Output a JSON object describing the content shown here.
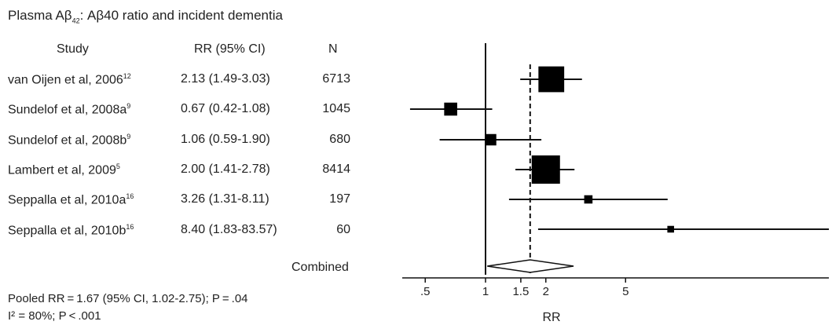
{
  "title": {
    "prefix": "Plasma Aβ",
    "subscript": "42",
    "suffix": ": Aβ40 ratio and incident dementia"
  },
  "headers": {
    "study": "Study",
    "rr": "RR (95% CI)",
    "n": "N"
  },
  "studies": [
    {
      "name": "van Oijen et al, 2006",
      "ref": "12",
      "rr_text": "2.13 (1.49-3.03)",
      "n": "6713"
    },
    {
      "name": "Sundelof et al, 2008a",
      "ref": "9",
      "rr_text": "0.67 (0.42-1.08)",
      "n": "1045"
    },
    {
      "name": "Sundelof et al, 2008b",
      "ref": "9",
      "rr_text": "1.06 (0.59-1.90)",
      "n": "680"
    },
    {
      "name": "Lambert et al, 2009",
      "ref": "5",
      "rr_text": "2.00 (1.41-2.78)",
      "n": "8414"
    },
    {
      "name": "Seppalla et al, 2010a",
      "ref": "16",
      "rr_text": "3.26 (1.31-8.11)",
      "n": "197"
    },
    {
      "name": "Seppalla et al, 2010b",
      "ref": "16",
      "rr_text": "8.40 (1.83-83.57)",
      "n": "60"
    }
  ],
  "combined_label": "Combined",
  "footer": {
    "pooled": "Pooled RR = 1.67 (95% CI, 1.02-2.75); P = .04",
    "i2": "I² = 80%; P < .001"
  },
  "chart_data": {
    "type": "forest",
    "scale": "log",
    "xlabel": "RR",
    "xticks": [
      ".5",
      "1",
      "1.5",
      "2",
      "5"
    ],
    "xtick_values": [
      0.5,
      1,
      1.5,
      2,
      5
    ],
    "xlim": [
      0.35,
      14
    ],
    "reference_line": 1,
    "pooled_line": 1.67,
    "series": [
      {
        "study": "van Oijen et al, 2006",
        "rr": 2.13,
        "lo": 1.49,
        "hi": 3.03,
        "n": 6713
      },
      {
        "study": "Sundelof et al, 2008a",
        "rr": 0.67,
        "lo": 0.42,
        "hi": 1.08,
        "n": 1045
      },
      {
        "study": "Sundelof et al, 2008b",
        "rr": 1.06,
        "lo": 0.59,
        "hi": 1.9,
        "n": 680
      },
      {
        "study": "Lambert et al, 2009",
        "rr": 2.0,
        "lo": 1.41,
        "hi": 2.78,
        "n": 8414
      },
      {
        "study": "Seppalla et al, 2010a",
        "rr": 3.26,
        "lo": 1.31,
        "hi": 8.11,
        "n": 197
      },
      {
        "study": "Seppalla et al, 2010b",
        "rr": 8.4,
        "lo": 1.83,
        "hi": 83.57,
        "n": 60
      }
    ],
    "combined": {
      "rr": 1.67,
      "lo": 1.02,
      "hi": 2.75
    }
  }
}
